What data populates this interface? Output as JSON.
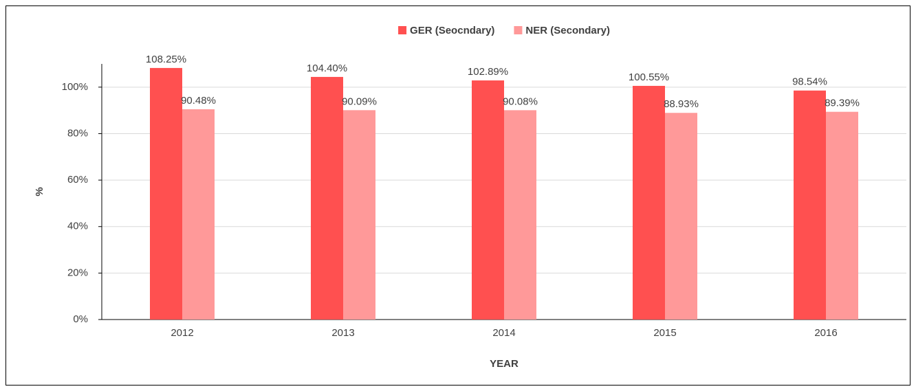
{
  "chart_data": {
    "type": "bar",
    "categories": [
      "2012",
      "2013",
      "2014",
      "2015",
      "2016"
    ],
    "series": [
      {
        "name": "GER (Seocndary)",
        "color": "#ff5050",
        "values": [
          108.25,
          104.4,
          102.89,
          100.55,
          98.54
        ],
        "value_labels": [
          "108.25%",
          "104.40%",
          "102.89%",
          "100.55%",
          "98.54%"
        ]
      },
      {
        "name": "NER (Secondary)",
        "color": "#ff9999",
        "values": [
          90.48,
          90.09,
          90.08,
          88.93,
          89.39
        ],
        "value_labels": [
          "90.48%",
          "90.09%",
          "90.08%",
          "88.93%",
          "89.39%"
        ]
      }
    ],
    "xlabel": "YEAR",
    "ylabel": "%",
    "ylim": [
      0,
      110
    ],
    "yticks": [
      {
        "value": 0,
        "label": "0%"
      },
      {
        "value": 20,
        "label": "20%"
      },
      {
        "value": 40,
        "label": "40%"
      },
      {
        "value": 60,
        "label": "60%"
      },
      {
        "value": 80,
        "label": "80%"
      },
      {
        "value": 100,
        "label": "100%"
      }
    ],
    "grid": true,
    "legend": "top"
  }
}
